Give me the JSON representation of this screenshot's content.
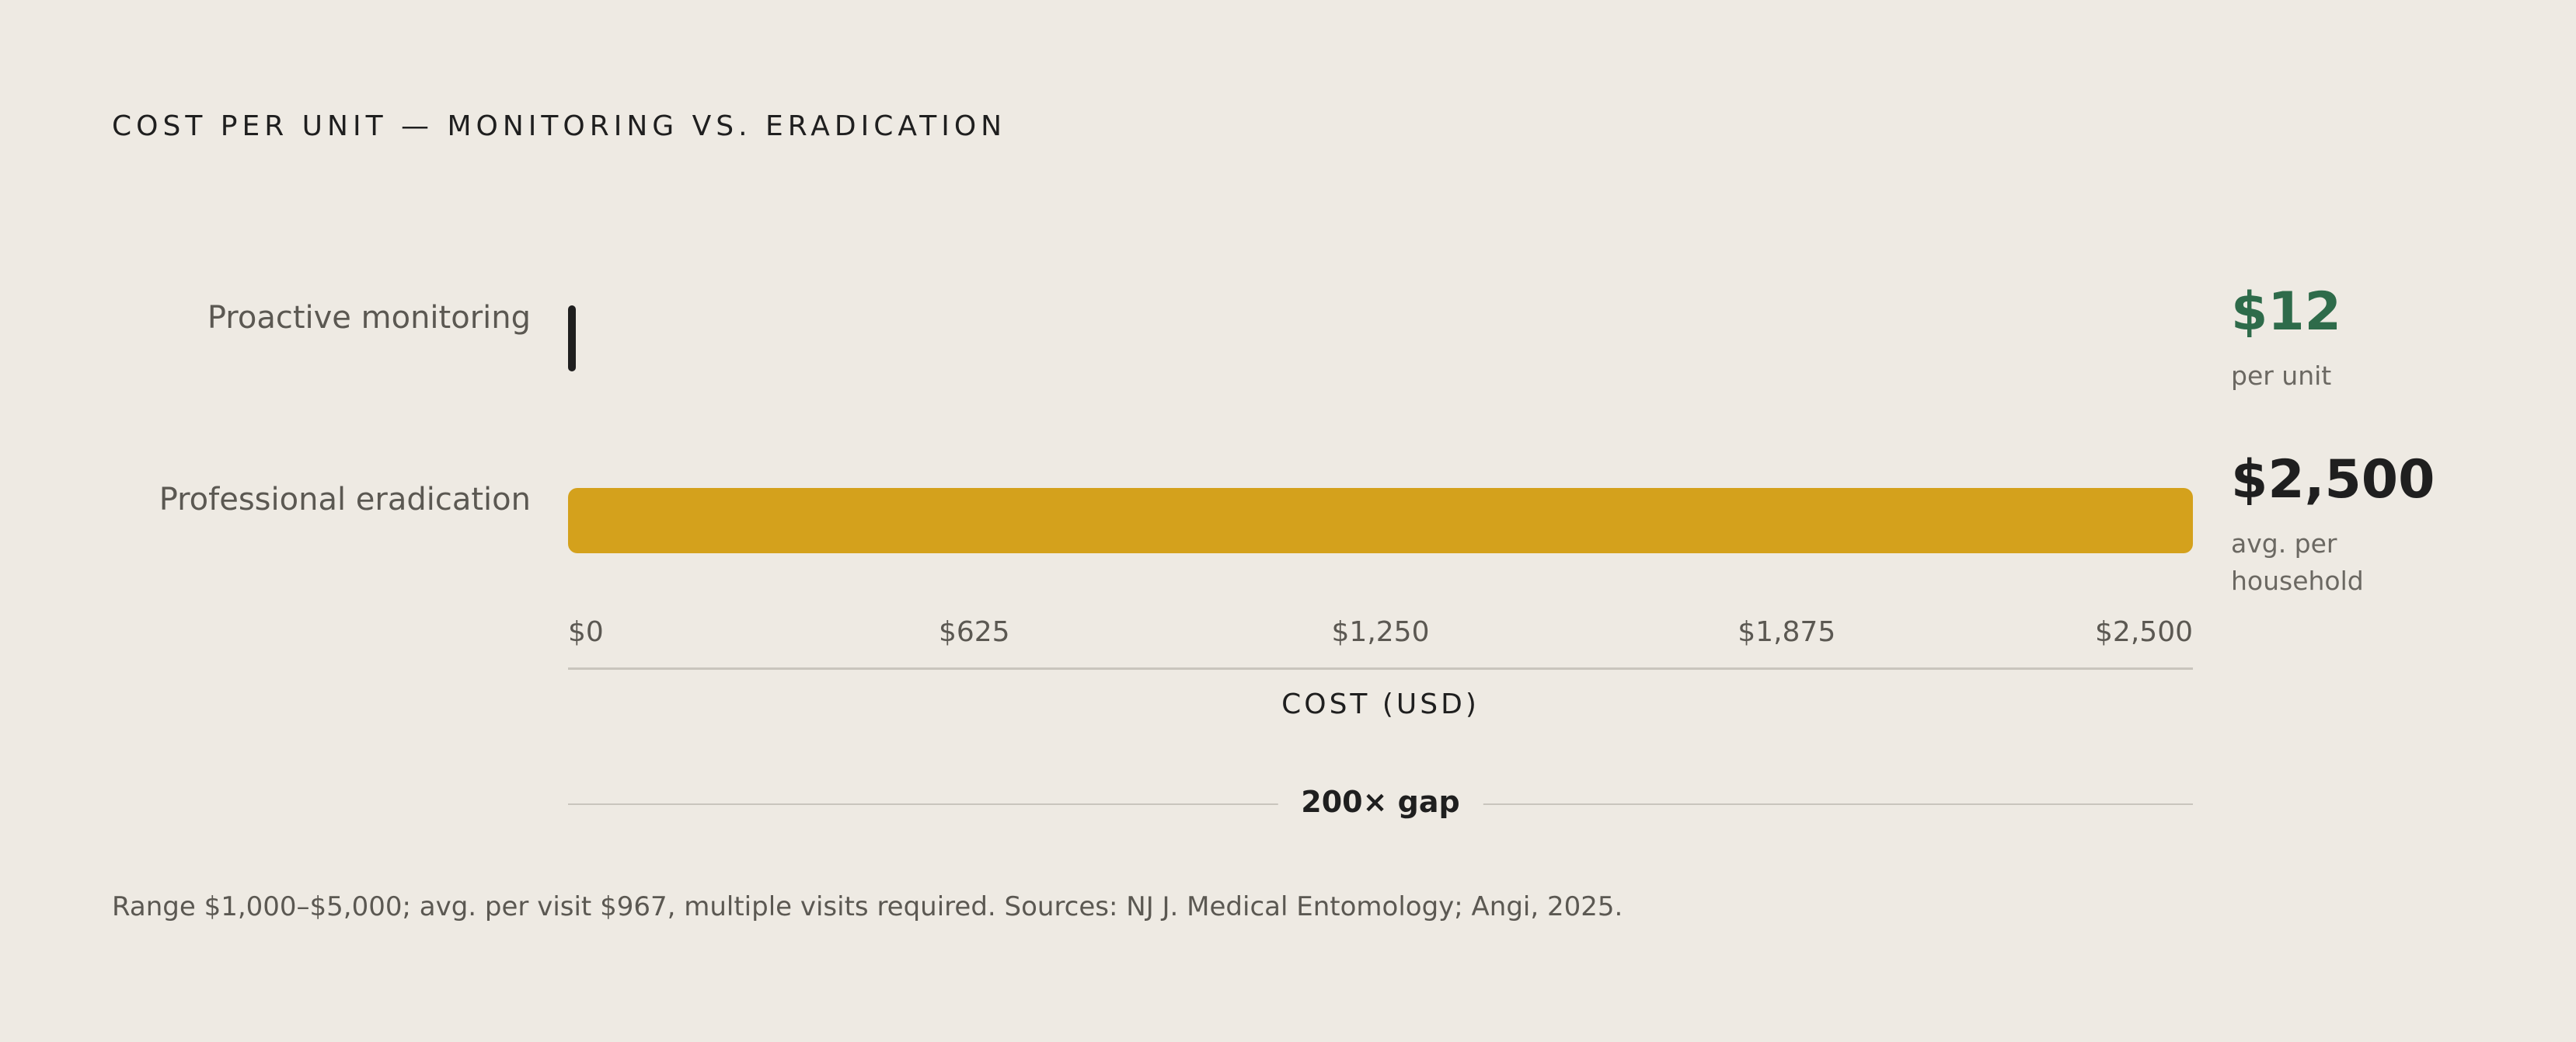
{
  "chart_data": {
    "type": "hbar",
    "title": "COST PER UNIT — MONITORING VS. ERADICATION",
    "categories": [
      "Proactive monitoring",
      "Professional eradication"
    ],
    "values": [
      12,
      2500
    ],
    "value_labels": [
      "$12",
      "$2,500"
    ],
    "value_notes": [
      "per unit",
      "avg. per household"
    ],
    "colors": [
      "#1f1f1f",
      "#d4a11c"
    ],
    "value_label_colors": [
      "#2e6b4a",
      "#1f1f1f"
    ],
    "xlim": [
      0,
      2500
    ],
    "xticks": [
      {
        "value": 0,
        "label": "$0"
      },
      {
        "value": 625,
        "label": "$625"
      },
      {
        "value": 1250,
        "label": "$1,250"
      },
      {
        "value": 1875,
        "label": "$1,875"
      },
      {
        "value": 2500,
        "label": "$2,500"
      }
    ],
    "xlabel": "COST (USD)",
    "annotation": "200× gap",
    "note": "Range $1,000–$5,000; avg. per visit $967, multiple visits required. Sources: NJ J. Medical Entomology; Angi, 2025."
  }
}
